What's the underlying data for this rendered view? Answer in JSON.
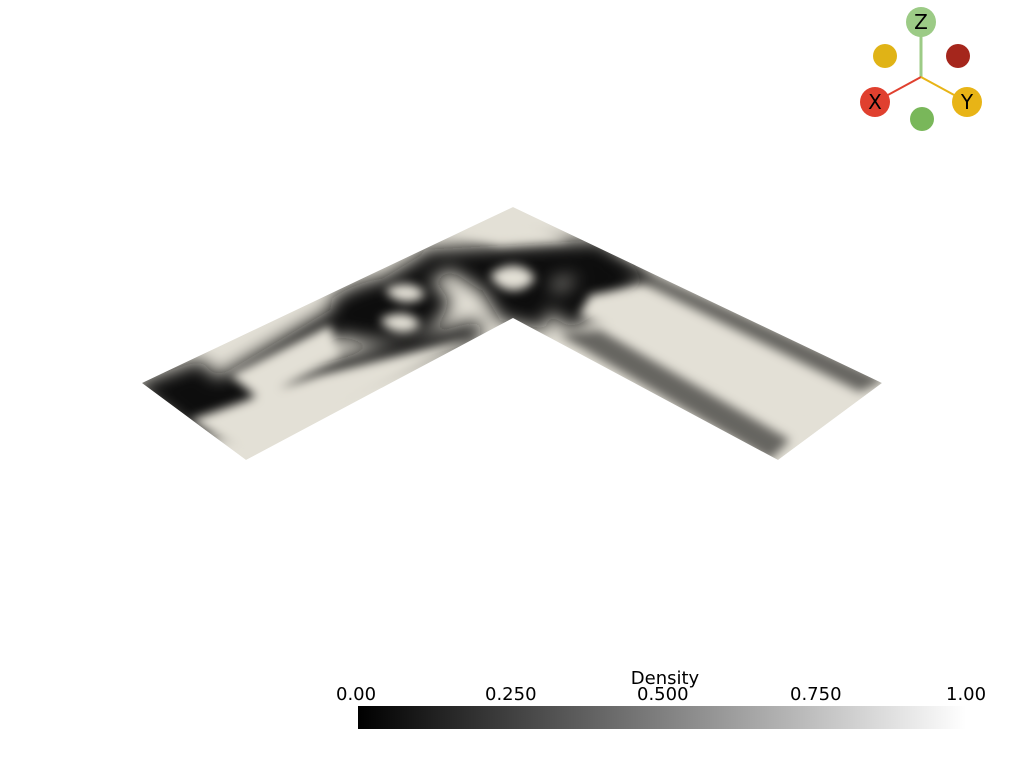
{
  "scalar_bar": {
    "title": "Density",
    "tick_labels": [
      "0.00",
      "0.250",
      "0.500",
      "0.750",
      "1.00"
    ],
    "range": [
      0.0,
      1.0
    ],
    "low_color": "#000000",
    "high_color": "#ffffff"
  },
  "orientation_widget": {
    "x_label": "X",
    "y_label": "Y",
    "z_label": "Z",
    "x_color": "#e0402f",
    "y_color": "#e8b416",
    "z_color": "#9ccb86",
    "neg_x_color": "#a5261c",
    "neg_y_color": "#e0b316",
    "neg_z_color": "#79b75a"
  },
  "mesh": {
    "solid_color": "#e3e0d6",
    "void_color": "#0a0a0a"
  }
}
